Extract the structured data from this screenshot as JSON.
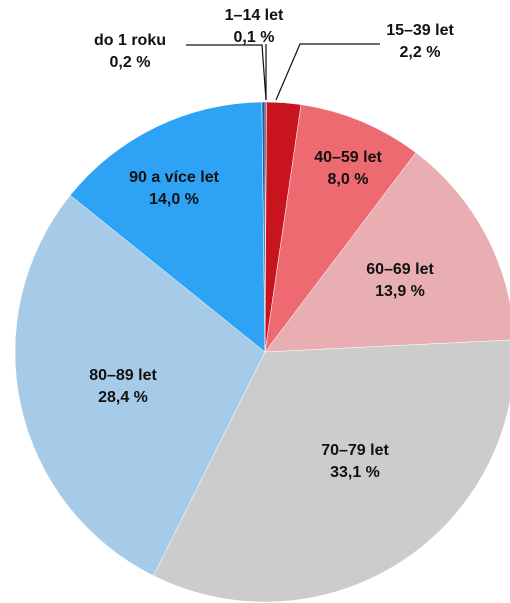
{
  "chart_data": {
    "type": "pie",
    "categories": [
      "1–14 let",
      "15–39 let",
      "40–59 let",
      "60–69 let",
      "70–79 let",
      "80–89 let",
      "90 a více let",
      "do 1 roku"
    ],
    "values": [
      0.1,
      2.2,
      8.0,
      13.9,
      33.1,
      28.4,
      14.0,
      0.2
    ],
    "value_labels": [
      "0,1 %",
      "2,2 %",
      "8,0 %",
      "13,9 %",
      "33,1 %",
      "28,4 %",
      "14,0 %",
      "0,2 %"
    ],
    "colors": [
      "#8b0a10",
      "#c8141e",
      "#ec6a70",
      "#e8aeb1",
      "#cccccc",
      "#a6cbe8",
      "#2ea3f5",
      "#1a5fa8"
    ]
  }
}
